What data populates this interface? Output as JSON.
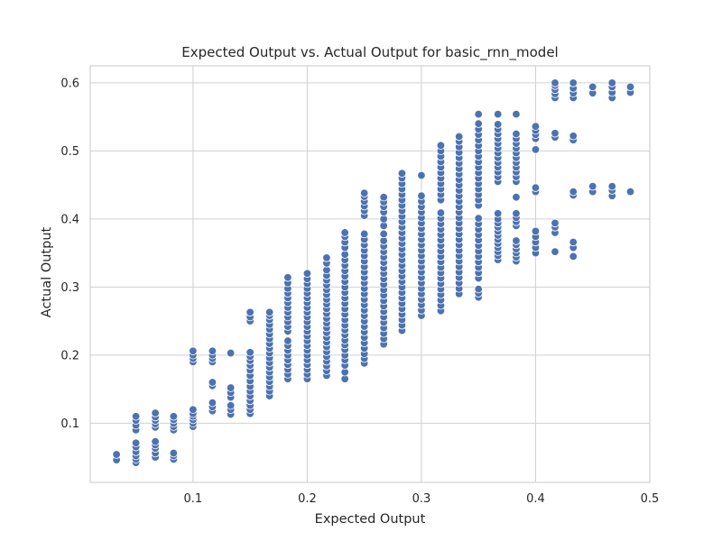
{
  "colors": {
    "point": "#4c72b0",
    "grid": "#d0d0d0",
    "text": "#262626"
  },
  "chart_data": {
    "type": "scatter",
    "title": "Expected Output vs. Actual Output for basic_rnn_model",
    "xlabel": "Expected Output",
    "ylabel": "Actual Output",
    "xlim": [
      0.01,
      0.5
    ],
    "ylim": [
      0.013,
      0.625
    ],
    "xticks": [
      0.1,
      0.2,
      0.3,
      0.4,
      0.5
    ],
    "yticks": [
      0.1,
      0.2,
      0.3,
      0.4,
      0.5,
      0.6
    ],
    "xtick_labels": [
      "0.1",
      "0.2",
      "0.3",
      "0.4",
      "0.5"
    ],
    "ytick_labels": [
      "0.1",
      "0.2",
      "0.3",
      "0.4",
      "0.5",
      "0.6"
    ],
    "grid": true,
    "legend": false,
    "columns": [
      {
        "x": 0.033,
        "y": [
          0.046,
          0.054
        ]
      },
      {
        "x": 0.05,
        "y": [
          0.042,
          0.047,
          0.052,
          0.058,
          0.065,
          0.071,
          0.09,
          0.097,
          0.104,
          0.11
        ]
      },
      {
        "x": 0.067,
        "y": [
          0.05,
          0.056,
          0.063,
          0.068,
          0.073,
          0.094,
          0.099,
          0.104,
          0.109,
          0.115
        ]
      },
      {
        "x": 0.083,
        "y": [
          0.047,
          0.052,
          0.056,
          0.09,
          0.095,
          0.1,
          0.105,
          0.11
        ]
      },
      {
        "x": 0.1,
        "y": [
          0.095,
          0.1,
          0.105,
          0.11,
          0.114,
          0.12,
          0.19,
          0.195,
          0.2,
          0.206
        ]
      },
      {
        "x": 0.117,
        "y": [
          0.118,
          0.124,
          0.13,
          0.155,
          0.16,
          0.19,
          0.195,
          0.2,
          0.206
        ]
      },
      {
        "x": 0.133,
        "y": [
          0.113,
          0.12,
          0.126,
          0.138,
          0.145,
          0.152,
          0.203
        ]
      },
      {
        "x": 0.15,
        "y": [
          0.114,
          0.12,
          0.126,
          0.133,
          0.14,
          0.147,
          0.154,
          0.162,
          0.17,
          0.178,
          0.185,
          0.192,
          0.198,
          0.204,
          0.25,
          0.256,
          0.263
        ]
      },
      {
        "x": 0.167,
        "y": [
          0.14,
          0.147,
          0.154,
          0.161,
          0.168,
          0.175,
          0.182,
          0.189,
          0.196,
          0.203,
          0.21,
          0.217,
          0.224,
          0.231,
          0.238,
          0.245,
          0.252,
          0.258,
          0.263
        ]
      },
      {
        "x": 0.183,
        "y": [
          0.165,
          0.172,
          0.179,
          0.186,
          0.193,
          0.2,
          0.207,
          0.214,
          0.221,
          0.235,
          0.242,
          0.249,
          0.256,
          0.263,
          0.27,
          0.277,
          0.284,
          0.291,
          0.298,
          0.306,
          0.314
        ]
      },
      {
        "x": 0.2,
        "y": [
          0.165,
          0.172,
          0.179,
          0.186,
          0.193,
          0.2,
          0.207,
          0.214,
          0.221,
          0.228,
          0.235,
          0.242,
          0.249,
          0.256,
          0.263,
          0.27,
          0.277,
          0.284,
          0.291,
          0.298,
          0.305,
          0.312,
          0.32
        ]
      },
      {
        "x": 0.217,
        "y": [
          0.17,
          0.177,
          0.184,
          0.191,
          0.198,
          0.205,
          0.212,
          0.219,
          0.226,
          0.233,
          0.24,
          0.247,
          0.254,
          0.261,
          0.268,
          0.275,
          0.282,
          0.289,
          0.296,
          0.303,
          0.31,
          0.317,
          0.325,
          0.335,
          0.343
        ]
      },
      {
        "x": 0.233,
        "y": [
          0.165,
          0.175,
          0.185,
          0.193,
          0.2,
          0.208,
          0.215,
          0.222,
          0.23,
          0.237,
          0.244,
          0.252,
          0.26,
          0.268,
          0.276,
          0.284,
          0.292,
          0.3,
          0.308,
          0.316,
          0.324,
          0.332,
          0.34,
          0.348,
          0.358,
          0.366,
          0.374,
          0.38
        ]
      },
      {
        "x": 0.25,
        "y": [
          0.188,
          0.195,
          0.202,
          0.21,
          0.218,
          0.226,
          0.234,
          0.242,
          0.25,
          0.258,
          0.266,
          0.274,
          0.282,
          0.29,
          0.298,
          0.306,
          0.314,
          0.322,
          0.33,
          0.338,
          0.346,
          0.354,
          0.362,
          0.37,
          0.378,
          0.405,
          0.412,
          0.419,
          0.426,
          0.433,
          0.438
        ]
      },
      {
        "x": 0.267,
        "y": [
          0.216,
          0.224,
          0.232,
          0.24,
          0.248,
          0.256,
          0.264,
          0.272,
          0.28,
          0.288,
          0.296,
          0.304,
          0.312,
          0.32,
          0.328,
          0.336,
          0.344,
          0.352,
          0.36,
          0.368,
          0.378,
          0.39,
          0.4,
          0.41,
          0.418,
          0.425,
          0.432
        ]
      },
      {
        "x": 0.283,
        "y": [
          0.236,
          0.244,
          0.252,
          0.26,
          0.268,
          0.276,
          0.284,
          0.292,
          0.3,
          0.308,
          0.316,
          0.324,
          0.332,
          0.34,
          0.348,
          0.356,
          0.364,
          0.372,
          0.38,
          0.388,
          0.396,
          0.404,
          0.412,
          0.42,
          0.428,
          0.436,
          0.444,
          0.452,
          0.46,
          0.467
        ]
      },
      {
        "x": 0.3,
        "y": [
          0.258,
          0.266,
          0.274,
          0.282,
          0.29,
          0.298,
          0.306,
          0.314,
          0.322,
          0.33,
          0.338,
          0.346,
          0.354,
          0.362,
          0.37,
          0.378,
          0.386,
          0.394,
          0.402,
          0.41,
          0.418,
          0.426,
          0.434,
          0.464
        ]
      },
      {
        "x": 0.317,
        "y": [
          0.265,
          0.273,
          0.281,
          0.289,
          0.297,
          0.305,
          0.313,
          0.321,
          0.329,
          0.337,
          0.345,
          0.353,
          0.361,
          0.369,
          0.377,
          0.385,
          0.393,
          0.401,
          0.409,
          0.428,
          0.436,
          0.444,
          0.452,
          0.46,
          0.468,
          0.476,
          0.484,
          0.492,
          0.5,
          0.508
        ]
      },
      {
        "x": 0.333,
        "y": [
          0.29,
          0.298,
          0.306,
          0.314,
          0.322,
          0.33,
          0.338,
          0.346,
          0.354,
          0.362,
          0.37,
          0.378,
          0.386,
          0.394,
          0.402,
          0.41,
          0.418,
          0.426,
          0.434,
          0.442,
          0.45,
          0.458,
          0.466,
          0.474,
          0.482,
          0.49,
          0.498,
          0.506,
          0.514,
          0.521
        ]
      },
      {
        "x": 0.35,
        "y": [
          0.285,
          0.291,
          0.297,
          0.313,
          0.321,
          0.329,
          0.337,
          0.345,
          0.353,
          0.361,
          0.369,
          0.377,
          0.385,
          0.393,
          0.401,
          0.42,
          0.428,
          0.436,
          0.444,
          0.452,
          0.46,
          0.468,
          0.476,
          0.484,
          0.492,
          0.5,
          0.508,
          0.516,
          0.524,
          0.532,
          0.54,
          0.554
        ]
      },
      {
        "x": 0.367,
        "y": [
          0.34,
          0.346,
          0.352,
          0.358,
          0.364,
          0.37,
          0.376,
          0.382,
          0.388,
          0.394,
          0.4,
          0.408,
          0.455,
          0.462,
          0.469,
          0.476,
          0.483,
          0.49,
          0.497,
          0.504,
          0.511,
          0.518,
          0.525,
          0.532,
          0.539,
          0.554
        ]
      },
      {
        "x": 0.383,
        "y": [
          0.338,
          0.344,
          0.35,
          0.356,
          0.362,
          0.368,
          0.39,
          0.396,
          0.402,
          0.408,
          0.432,
          0.455,
          0.462,
          0.469,
          0.476,
          0.483,
          0.49,
          0.497,
          0.504,
          0.511,
          0.518,
          0.525,
          0.554
        ]
      },
      {
        "x": 0.4,
        "y": [
          0.35,
          0.358,
          0.366,
          0.374,
          0.382,
          0.44,
          0.446,
          0.502,
          0.518,
          0.524,
          0.53,
          0.536
        ]
      },
      {
        "x": 0.417,
        "y": [
          0.352,
          0.38,
          0.388,
          0.394,
          0.52,
          0.526,
          0.578,
          0.584,
          0.59,
          0.596,
          0.6
        ]
      },
      {
        "x": 0.433,
        "y": [
          0.345,
          0.358,
          0.366,
          0.435,
          0.44,
          0.516,
          0.522,
          0.578,
          0.585,
          0.592,
          0.6
        ]
      },
      {
        "x": 0.45,
        "y": [
          0.44,
          0.448,
          0.585,
          0.594
        ]
      },
      {
        "x": 0.467,
        "y": [
          0.434,
          0.442,
          0.448,
          0.578,
          0.586,
          0.594,
          0.6
        ]
      },
      {
        "x": 0.483,
        "y": [
          0.44,
          0.586,
          0.594
        ]
      }
    ]
  }
}
